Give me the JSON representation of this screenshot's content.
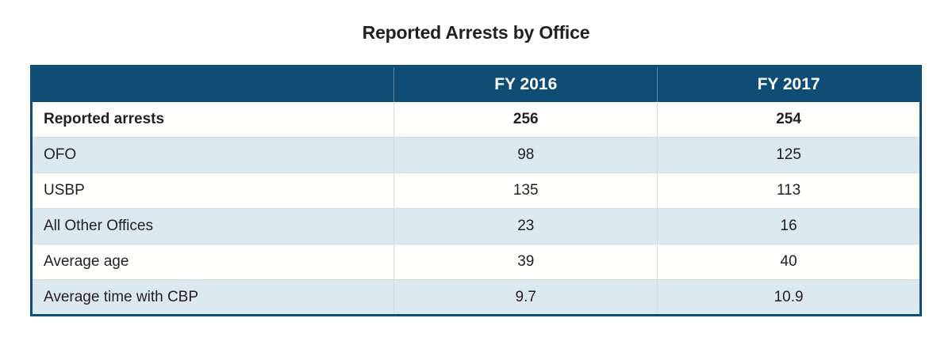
{
  "title": "Reported Arrests by Office",
  "table": {
    "header": {
      "col_label": "",
      "col_fy2016": "FY 2016",
      "col_fy2017": "FY 2017"
    },
    "rows": [
      {
        "label": "Reported arrests",
        "fy2016": "256",
        "fy2017": "254"
      },
      {
        "label": "OFO",
        "fy2016": "98",
        "fy2017": "125"
      },
      {
        "label": "USBP",
        "fy2016": "135",
        "fy2017": "113"
      },
      {
        "label": "All Other Offices",
        "fy2016": "23",
        "fy2017": "16"
      },
      {
        "label": "Average age",
        "fy2016": "39",
        "fy2017": "40"
      },
      {
        "label": "Average time with CBP",
        "fy2016": "9.7",
        "fy2017": "10.9"
      }
    ]
  },
  "colors": {
    "header_background": "#0f4d75",
    "border": "#0f4d75",
    "row_shade": "#dce8ef",
    "row_white": "#fffffe",
    "grid_line": "#d8dcde",
    "header_text": "#ffffff",
    "body_text": "#231f20"
  },
  "chart_data": {
    "type": "table",
    "title": "Reported Arrests by Office",
    "columns": [
      "",
      "FY 2016",
      "FY 2017"
    ],
    "rows": [
      [
        "Reported arrests",
        256,
        254
      ],
      [
        "OFO",
        98,
        125
      ],
      [
        "USBP",
        135,
        113
      ],
      [
        "All Other Offices",
        23,
        16
      ],
      [
        "Average age",
        39,
        40
      ],
      [
        "Average time with CBP",
        9.7,
        10.9
      ]
    ],
    "notes": "Bold totals row: Reported arrests. Alternating row shading; dark blue header band with white bold column labels."
  }
}
